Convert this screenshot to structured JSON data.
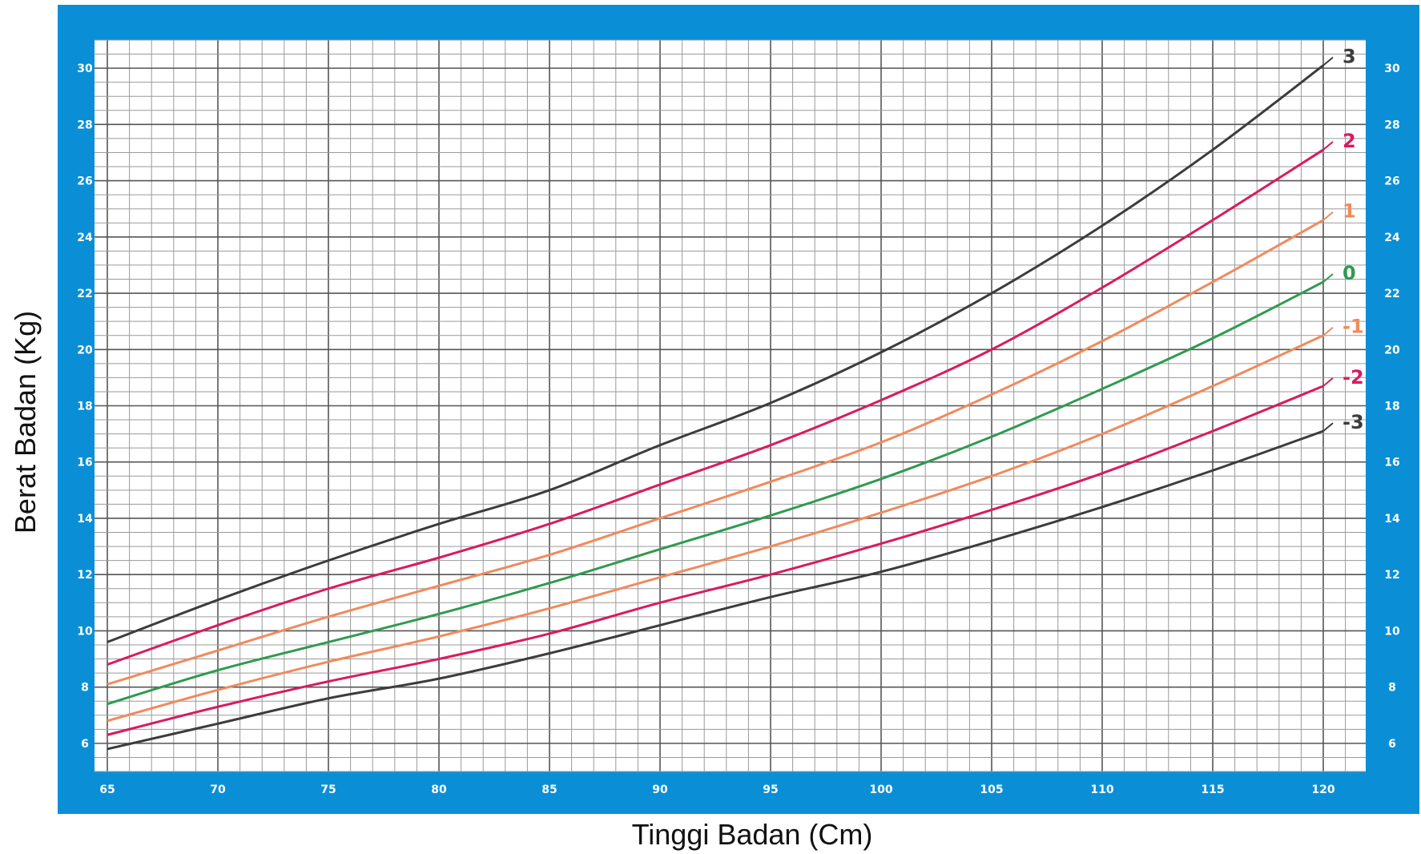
{
  "chart_data": {
    "type": "line",
    "xlabel": "Tinggi Badan (Cm)",
    "ylabel": "Berat Badan (Kg)",
    "xlim": [
      65,
      120
    ],
    "ylim": [
      5,
      31
    ],
    "x_ticks": [
      65,
      70,
      75,
      80,
      85,
      90,
      95,
      100,
      105,
      110,
      115,
      120
    ],
    "y_ticks": [
      6,
      8,
      10,
      12,
      14,
      16,
      18,
      20,
      22,
      24,
      26,
      28,
      30
    ],
    "grid": true,
    "x": [
      65,
      70,
      75,
      80,
      85,
      90,
      95,
      100,
      105,
      110,
      115,
      120
    ],
    "series": [
      {
        "name": "3",
        "color": "#3c3c3c",
        "values": [
          9.6,
          11.1,
          12.5,
          13.8,
          15.0,
          16.6,
          18.1,
          19.9,
          22.0,
          24.4,
          27.1,
          30.1
        ]
      },
      {
        "name": "2",
        "color": "#d81b60",
        "values": [
          8.8,
          10.2,
          11.5,
          12.6,
          13.8,
          15.2,
          16.6,
          18.2,
          20.0,
          22.2,
          24.6,
          27.1
        ]
      },
      {
        "name": "1",
        "color": "#f08a5d",
        "values": [
          8.1,
          9.3,
          10.5,
          11.6,
          12.7,
          14.0,
          15.3,
          16.7,
          18.4,
          20.3,
          22.4,
          24.6
        ]
      },
      {
        "name": "0",
        "color": "#2e9b4f",
        "values": [
          7.4,
          8.6,
          9.6,
          10.6,
          11.7,
          12.9,
          14.1,
          15.4,
          16.9,
          18.6,
          20.4,
          22.4
        ]
      },
      {
        "name": "-1",
        "color": "#f08a5d",
        "values": [
          6.8,
          7.9,
          8.9,
          9.8,
          10.8,
          11.9,
          13.0,
          14.2,
          15.5,
          17.0,
          18.7,
          20.5
        ]
      },
      {
        "name": "-2",
        "color": "#d81b60",
        "values": [
          6.3,
          7.3,
          8.2,
          9.0,
          9.9,
          11.0,
          12.0,
          13.1,
          14.3,
          15.6,
          17.1,
          18.7
        ]
      },
      {
        "name": "-3",
        "color": "#3c3c3c",
        "values": [
          5.8,
          6.7,
          7.6,
          8.3,
          9.2,
          10.2,
          11.2,
          12.1,
          13.2,
          14.4,
          15.7,
          17.1
        ]
      }
    ]
  },
  "colors": {
    "frame": "#0a8fd6",
    "plot_bg": "#ffffff",
    "grid_minor": "#9a9a9a",
    "grid_major": "#555555"
  }
}
